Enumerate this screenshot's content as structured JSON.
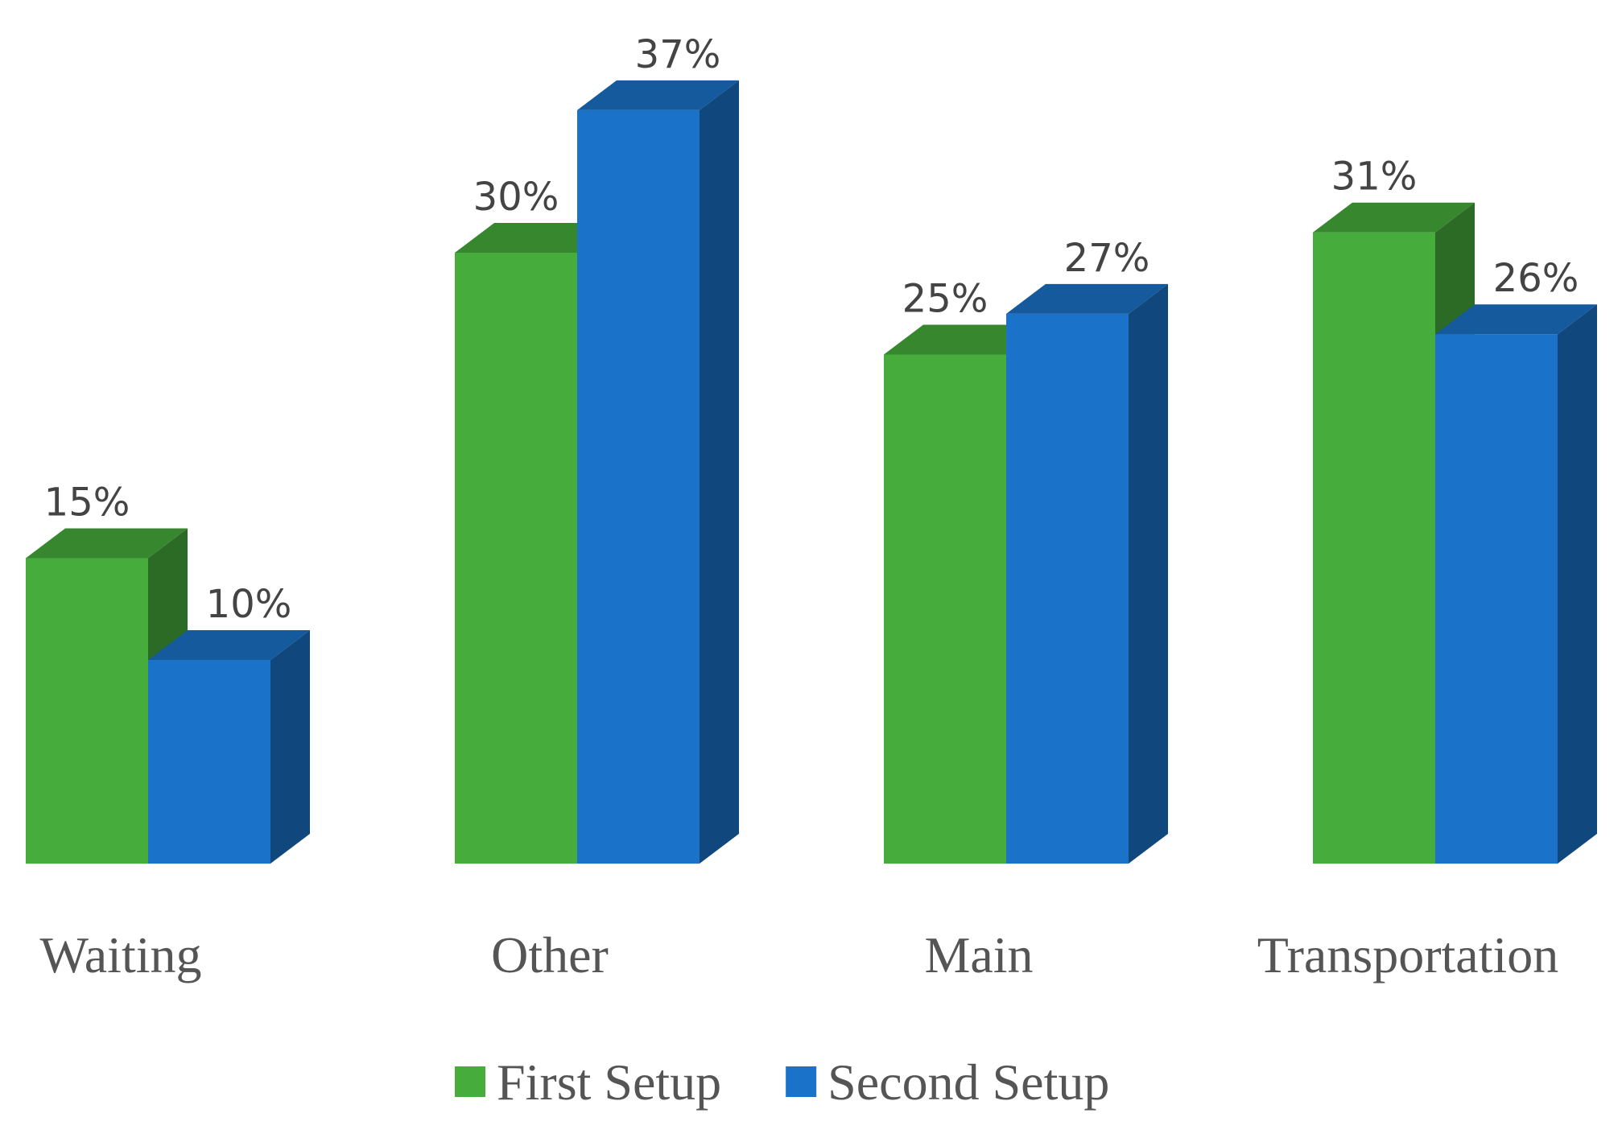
{
  "chart_data": {
    "type": "bar3d",
    "categories": [
      "Waiting",
      "Other",
      "Main",
      "Transportation"
    ],
    "series": [
      {
        "name": "First Setup",
        "color": "#46ad3c",
        "values": [
          15,
          30,
          25,
          31
        ],
        "value_labels": [
          "15%",
          "30%",
          "25%",
          "31%"
        ]
      },
      {
        "name": "Second Setup",
        "color": "#1a73c9",
        "values": [
          10,
          37,
          27,
          26
        ],
        "value_labels": [
          "10%",
          "37%",
          "27%",
          "26%"
        ]
      }
    ]
  }
}
